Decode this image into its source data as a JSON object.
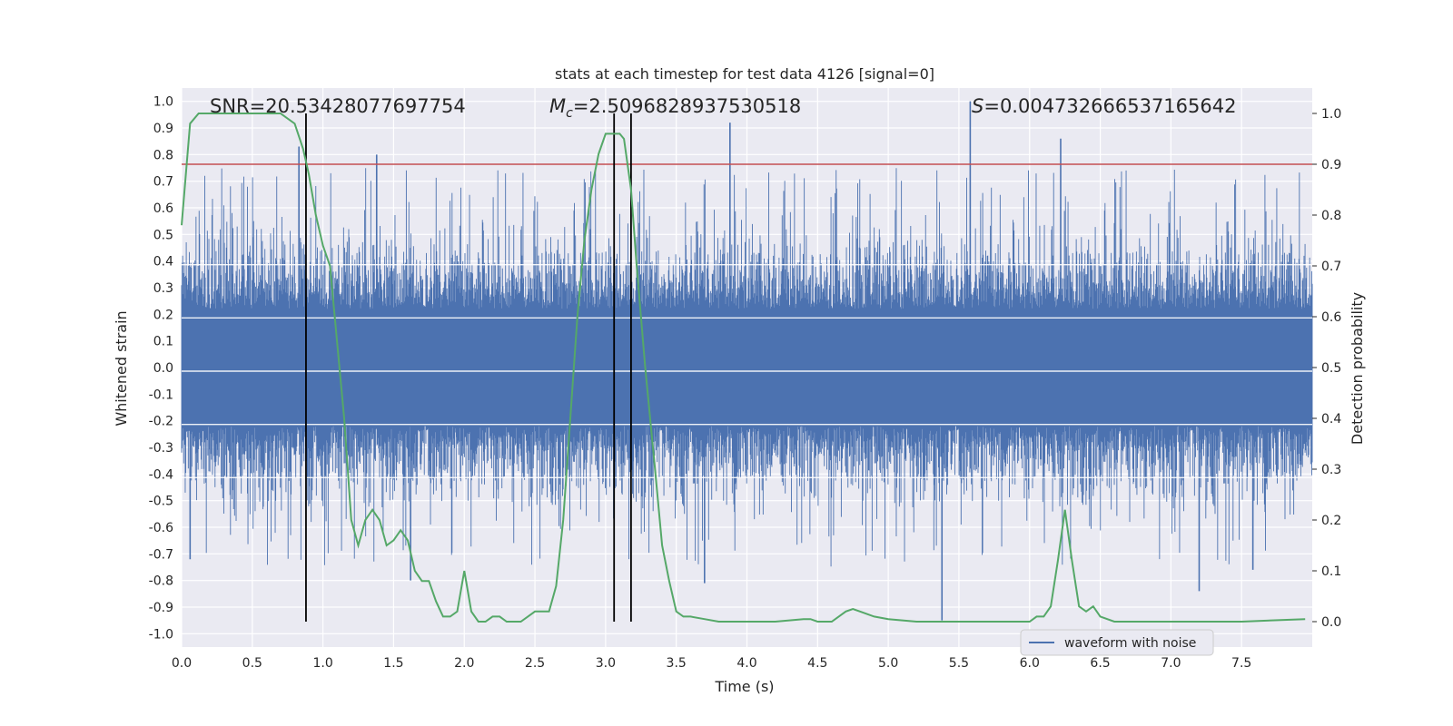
{
  "chart_data": {
    "type": "line",
    "title": "stats at each timestep for test data 4126 [signal=0]",
    "xlabel": "Time (s)",
    "ylabel_left": "Whitened strain",
    "ylabel_right": "Detection probability",
    "xlim": [
      0.0,
      8.0
    ],
    "ylim_left": [
      -1.05,
      1.05
    ],
    "ylim_right": [
      -0.05,
      1.05
    ],
    "x_ticks": [
      "0.0",
      "0.5",
      "1.0",
      "1.5",
      "2.0",
      "2.5",
      "3.0",
      "3.5",
      "4.0",
      "4.5",
      "5.0",
      "5.5",
      "6.0",
      "6.5",
      "7.0",
      "7.5"
    ],
    "y_ticks_left": [
      "1.0",
      "0.9",
      "0.8",
      "0.7",
      "0.6",
      "0.5",
      "0.4",
      "0.3",
      "0.2",
      "0.1",
      "0.0",
      "-0.1",
      "-0.2",
      "-0.3",
      "-0.4",
      "-0.5",
      "-0.6",
      "-0.7",
      "-0.8",
      "-0.9",
      "-1.0"
    ],
    "y_ticks_right": [
      "1.0",
      "0.9",
      "0.8",
      "0.7",
      "0.6",
      "0.5",
      "0.4",
      "0.3",
      "0.2",
      "0.1",
      "0.0"
    ],
    "threshold": 0.9,
    "vertical_lines_time": [
      0.88,
      3.06,
      3.18
    ],
    "annotations": {
      "snr": "SNR=20.53428077697754",
      "mc_label": "M",
      "mc_sub": "c",
      "mc_value": "=2.5096828937530518",
      "s_label": "S",
      "s_value": "=0.004732666537165642"
    },
    "legend": {
      "label": "waveform with noise",
      "location": "lower-right"
    },
    "series": [
      {
        "name": "waveform with noise",
        "color": "#4c72b0",
        "peaks": [
          {
            "t": 0.83,
            "v": 0.83
          },
          {
            "t": 1.38,
            "v": 0.8
          },
          {
            "t": 3.88,
            "v": 0.92
          },
          {
            "t": 5.58,
            "v": 1.0
          },
          {
            "t": 6.22,
            "v": 0.86
          },
          {
            "t": 5.38,
            "v": -0.95
          },
          {
            "t": 3.7,
            "v": -0.81
          },
          {
            "t": 7.2,
            "v": -0.84
          },
          {
            "t": 7.58,
            "v": -0.76
          },
          {
            "t": 0.06,
            "v": -0.72
          },
          {
            "t": 1.62,
            "v": -0.8
          }
        ]
      },
      {
        "name": "detection probability",
        "color": "#55a868",
        "t": [
          0.0,
          0.06,
          0.12,
          0.2,
          0.3,
          0.4,
          0.5,
          0.6,
          0.7,
          0.8,
          0.86,
          0.9,
          0.95,
          1.0,
          1.05,
          1.1,
          1.15,
          1.2,
          1.25,
          1.3,
          1.35,
          1.4,
          1.45,
          1.5,
          1.55,
          1.6,
          1.65,
          1.7,
          1.75,
          1.8,
          1.85,
          1.9,
          1.95,
          2.0,
          2.05,
          2.1,
          2.15,
          2.2,
          2.25,
          2.3,
          2.35,
          2.4,
          2.45,
          2.5,
          2.55,
          2.6,
          2.65,
          2.7,
          2.75,
          2.8,
          2.85,
          2.9,
          2.95,
          3.0,
          3.05,
          3.1,
          3.13,
          3.18,
          3.22,
          3.28,
          3.35,
          3.4,
          3.45,
          3.5,
          3.55,
          3.6,
          3.7,
          3.8,
          4.0,
          4.2,
          4.4,
          4.45,
          4.5,
          4.55,
          4.6,
          4.7,
          4.75,
          4.8,
          4.9,
          5.0,
          5.2,
          5.4,
          5.6,
          5.8,
          6.0,
          6.05,
          6.1,
          6.15,
          6.2,
          6.25,
          6.3,
          6.35,
          6.4,
          6.45,
          6.5,
          6.6,
          6.8,
          7.0,
          7.5,
          7.95
        ],
        "values": [
          0.78,
          0.98,
          1.0,
          1.0,
          1.0,
          1.0,
          1.0,
          1.0,
          1.0,
          0.98,
          0.93,
          0.88,
          0.8,
          0.74,
          0.7,
          0.55,
          0.4,
          0.2,
          0.15,
          0.2,
          0.22,
          0.2,
          0.15,
          0.16,
          0.18,
          0.16,
          0.1,
          0.08,
          0.08,
          0.04,
          0.01,
          0.01,
          0.02,
          0.1,
          0.02,
          0.0,
          0.0,
          0.01,
          0.01,
          0.0,
          0.0,
          0.0,
          0.01,
          0.02,
          0.02,
          0.02,
          0.07,
          0.2,
          0.4,
          0.6,
          0.75,
          0.85,
          0.92,
          0.96,
          0.96,
          0.96,
          0.95,
          0.85,
          0.7,
          0.5,
          0.3,
          0.15,
          0.08,
          0.02,
          0.01,
          0.01,
          0.005,
          0.0,
          0.0,
          0.0,
          0.005,
          0.005,
          0.0,
          0.0,
          0.0,
          0.02,
          0.025,
          0.02,
          0.01,
          0.005,
          0.0,
          0.0,
          0.0,
          0.0,
          0.0,
          0.01,
          0.01,
          0.03,
          0.12,
          0.22,
          0.12,
          0.03,
          0.02,
          0.03,
          0.01,
          0.0,
          0.0,
          0.0,
          0.0,
          0.005
        ]
      }
    ]
  }
}
